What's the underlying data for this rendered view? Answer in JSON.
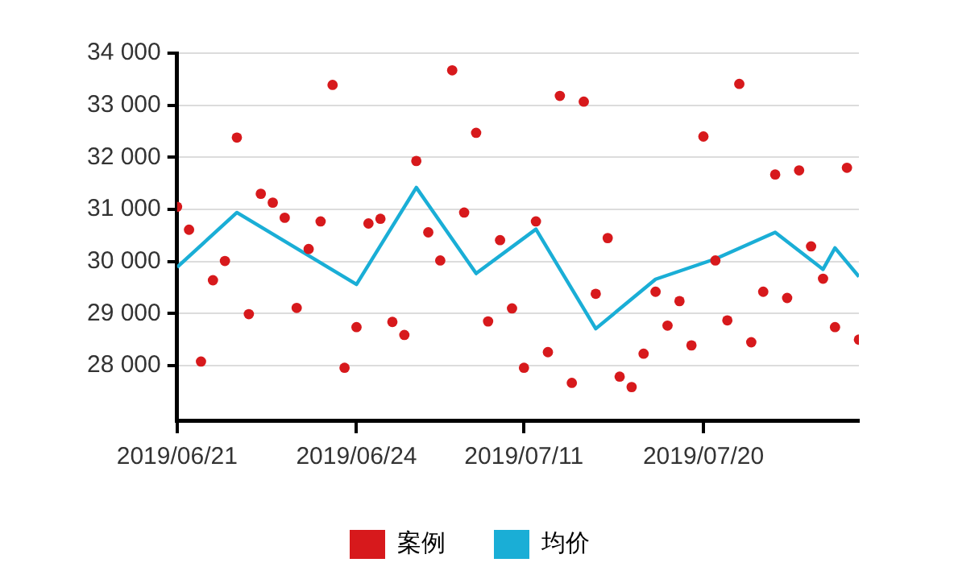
{
  "chart_data": {
    "type": "scatter",
    "categories": [
      "2019/06/21",
      null,
      null,
      null,
      null,
      null,
      null,
      null,
      null,
      null,
      null,
      null,
      null,
      null,
      null,
      "2019/06/24",
      null,
      null,
      null,
      null,
      null,
      null,
      null,
      null,
      null,
      null,
      null,
      null,
      null,
      "2019/07/11",
      null,
      null,
      null,
      null,
      null,
      null,
      null,
      null,
      null,
      null,
      null,
      null,
      null,
      null,
      "2019/07/20",
      null,
      null,
      null,
      null,
      null,
      null,
      null,
      null,
      null,
      null,
      null,
      null,
      null
    ],
    "ylim": [
      26950,
      34000
    ],
    "yticks": [
      {
        "value": 28000,
        "label": "28 000"
      },
      {
        "value": 29000,
        "label": "29 000"
      },
      {
        "value": 30000,
        "label": "30 000"
      },
      {
        "value": 31000,
        "label": "31 000"
      },
      {
        "value": 32000,
        "label": "32 000"
      },
      {
        "value": 33000,
        "label": "33 000"
      },
      {
        "value": 34000,
        "label": "34 000"
      }
    ],
    "grid": "y",
    "legend": "bottom",
    "series": [
      {
        "name": "案例",
        "color": "#d7191c",
        "marker": "circle",
        "values": [
          31050,
          30610,
          28080,
          29640,
          30010,
          32380,
          28990,
          31300,
          31130,
          30840,
          29110,
          30240,
          30770,
          33390,
          27960,
          28740,
          30730,
          30820,
          28840,
          28590,
          31930,
          30560,
          30020,
          33670,
          30940,
          32470,
          28850,
          30410,
          29100,
          27960,
          30770,
          28260,
          33180,
          27670,
          33070,
          29380,
          30450,
          27790,
          27590,
          28230,
          29420,
          28770,
          29240,
          28390,
          32400,
          30020,
          28870,
          33410,
          28450,
          29420,
          31670,
          29300,
          31750,
          30290,
          29670,
          28740,
          31800,
          28500
        ]
      },
      {
        "name": "均价",
        "type": "line",
        "color": "#1aaed6",
        "marker": "none",
        "values": [
          29890,
          null,
          null,
          null,
          null,
          30940,
          null,
          null,
          null,
          null,
          null,
          null,
          null,
          null,
          null,
          29560,
          null,
          null,
          null,
          null,
          31420,
          null,
          null,
          null,
          null,
          29770,
          null,
          null,
          null,
          null,
          30620,
          null,
          null,
          null,
          null,
          28710,
          null,
          null,
          null,
          null,
          29660,
          null,
          null,
          null,
          null,
          30050,
          null,
          null,
          null,
          null,
          30560,
          null,
          null,
          null,
          29850,
          30260,
          null,
          29710
        ]
      }
    ]
  }
}
